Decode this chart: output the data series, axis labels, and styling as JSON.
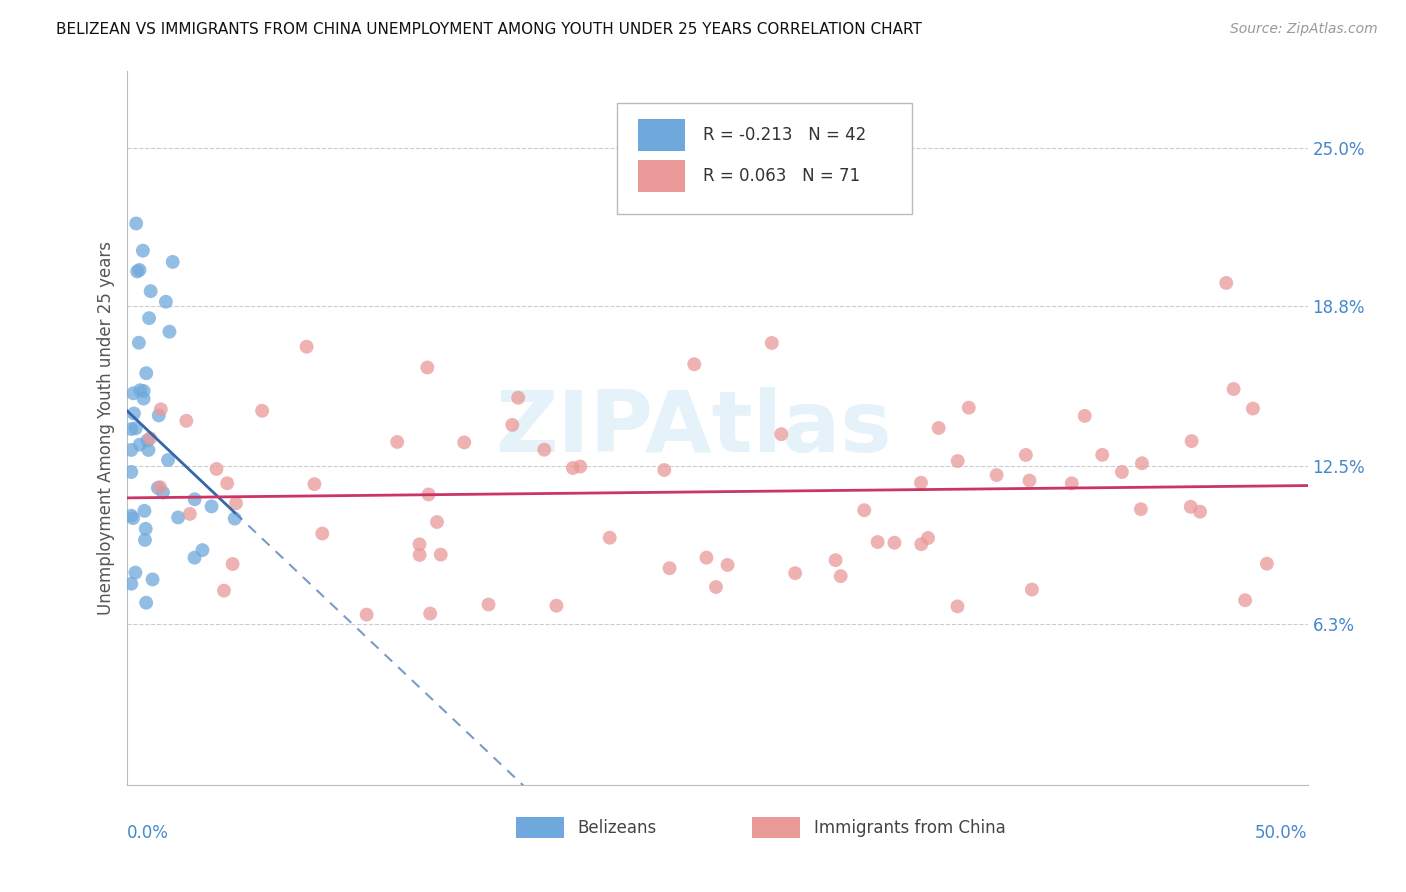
{
  "title": "BELIZEAN VS IMMIGRANTS FROM CHINA UNEMPLOYMENT AMONG YOUTH UNDER 25 YEARS CORRELATION CHART",
  "source": "Source: ZipAtlas.com",
  "ylabel": "Unemployment Among Youth under 25 years",
  "xlim": [
    0.0,
    0.5
  ],
  "ylim": [
    0.0,
    0.28
  ],
  "belizean_R": -0.213,
  "belizean_N": 42,
  "china_R": 0.063,
  "china_N": 71,
  "belizean_color": "#6fa8dc",
  "china_color": "#ea9999",
  "belizean_line_color": "#3366aa",
  "china_line_color": "#cc3366",
  "watermark_text": "ZIPAtlas",
  "watermark_color": "#d0e8f5",
  "ytick_positions": [
    0.063,
    0.125,
    0.188,
    0.25
  ],
  "ytick_labels": [
    "6.3%",
    "12.5%",
    "18.8%",
    "25.0%"
  ],
  "xtick_labels_left": "0.0%",
  "xtick_labels_right": "50.0%",
  "legend_label_bel": "Belizeans",
  "legend_label_china": "Immigrants from China"
}
